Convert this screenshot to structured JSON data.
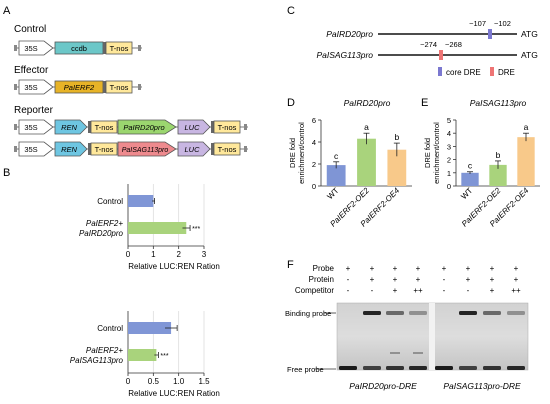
{
  "panelA": {
    "letter": "A",
    "sections": [
      "Control",
      "Effector",
      "Reporter"
    ],
    "promoter": "35S",
    "control": {
      "gene": "ccdb",
      "terminator": "T-nos"
    },
    "effector": {
      "gene": "PaIERF2",
      "terminator": "T-nos"
    },
    "reporter1": {
      "ren": "REN",
      "terminator1": "T-nos",
      "promoter": "PaIRD20pro",
      "luc": "LUC",
      "terminator2": "T-nos"
    },
    "reporter2": {
      "ren": "REN",
      "terminator1": "T-nos",
      "promoter": "PaISAG113pro",
      "luc": "LUC",
      "terminator2": "T-nos"
    }
  },
  "panelB": {
    "letter": "B",
    "charts": [
      {
        "type": "bar",
        "orientation": "horizontal",
        "categories": [
          "Control",
          "PaIERF2+ PaIRD20pro"
        ],
        "values": [
          1.0,
          2.3
        ],
        "errors": [
          0.05,
          0.15
        ],
        "colors": [
          "#8096d6",
          "#a9d37c"
        ],
        "significance": [
          "",
          "***"
        ],
        "xlabel": "Relative LUC:REN Ration",
        "xlim": [
          0,
          3
        ],
        "ticks": [
          "0",
          "1",
          "2",
          "3"
        ],
        "cat_lines": [
          [
            "Control"
          ],
          [
            "PaIERF2+",
            "PaIRD20pro"
          ]
        ]
      },
      {
        "type": "bar",
        "orientation": "horizontal",
        "categories": [
          "Control",
          "PaIERF2+ PaISAG113pro"
        ],
        "values": [
          0.85,
          0.56
        ],
        "errors": [
          0.12,
          0.04
        ],
        "colors": [
          "#8096d6",
          "#a9d37c"
        ],
        "significance": [
          "",
          "***"
        ],
        "xlabel": "Relative LUC:REN Ration",
        "xlim": [
          0,
          1.5
        ],
        "ticks": [
          "0",
          "0.5",
          "1.0",
          "1.5"
        ],
        "cat_lines": [
          [
            "Control"
          ],
          [
            "PaIERF2+",
            "PaISAG113pro"
          ]
        ]
      }
    ]
  },
  "panelC": {
    "letter": "C",
    "rows": [
      {
        "label": "PaIRD20pro",
        "marks": [
          "−107",
          "−102"
        ],
        "end": "ATG"
      },
      {
        "label": "PaISAG113pro",
        "marks": [
          "−274",
          "−268"
        ],
        "end": "ATG"
      }
    ],
    "legend": [
      {
        "label": "core DRE",
        "color": "#7b78d0"
      },
      {
        "label": "DRE",
        "color": "#ee7474"
      }
    ]
  },
  "chart_data": [
    {
      "panel": "D",
      "type": "bar",
      "title": "PaIRD20pro",
      "categories": [
        "WT",
        "PaIERF2-OE2",
        "PaIERF2-OE4"
      ],
      "values": [
        1.9,
        4.3,
        3.3
      ],
      "errors": [
        0.3,
        0.5,
        0.6
      ],
      "letters": [
        "c",
        "a",
        "b"
      ],
      "colors": [
        "#7f95d5",
        "#a9d37c",
        "#f8c98a"
      ],
      "ylabel": [
        "DRE fold",
        "enrichment/control"
      ],
      "ylim": [
        0,
        6
      ],
      "ticks": [
        "0",
        "2",
        "4",
        "6"
      ]
    },
    {
      "panel": "E",
      "type": "bar",
      "title": "PaISAG113pro",
      "categories": [
        "WT",
        "PaIERF2-OE2",
        "PaIERF2-OE4"
      ],
      "values": [
        1.0,
        1.6,
        3.7
      ],
      "errors": [
        0.08,
        0.3,
        0.3
      ],
      "letters": [
        "c",
        "b",
        "a"
      ],
      "colors": [
        "#7f95d5",
        "#a9d37c",
        "#f8c98a"
      ],
      "ylabel": [
        "DRE fold",
        "enrichment/control"
      ],
      "ylim": [
        0,
        5
      ],
      "ticks": [
        "0",
        "1",
        "2",
        "3",
        "4",
        "5"
      ]
    }
  ],
  "panelF": {
    "letter": "F",
    "row_labels": [
      "Probe",
      "Protein",
      "Competitor"
    ],
    "left_cols": [
      [
        "+",
        "-",
        "-"
      ],
      [
        "+",
        "+",
        "-"
      ],
      [
        "+",
        "+",
        "+"
      ],
      [
        "+",
        "+",
        "++"
      ]
    ],
    "right_cols": [
      [
        "+",
        "-",
        "-"
      ],
      [
        "+",
        "+",
        "-"
      ],
      [
        "+",
        "+",
        "+"
      ],
      [
        "+",
        "+",
        "++"
      ]
    ],
    "side_labels": [
      "Binding probe",
      "Free probe"
    ],
    "captions": [
      "PaIRD20pro-DRE",
      "PaISAG113pro-DRE"
    ]
  }
}
